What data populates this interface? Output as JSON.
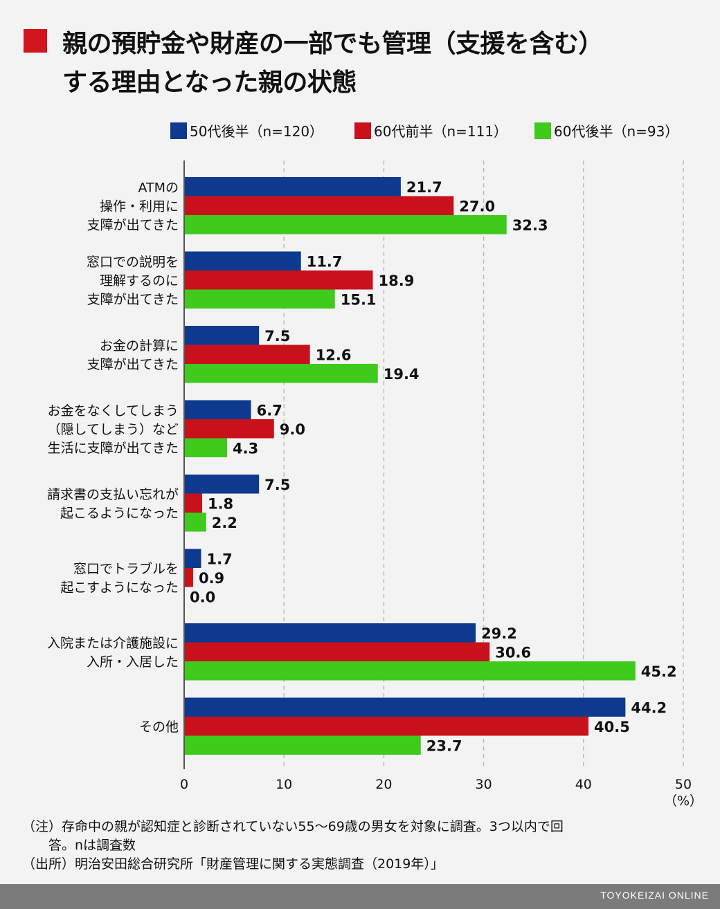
{
  "title": {
    "line1": "親の預貯金や財産の一部でも管理（支援を含む）",
    "line2": "する理由となった親の状態"
  },
  "colors": {
    "marker": "#d2141c",
    "series1": "#0d3a8f",
    "series2": "#c8111a",
    "series3": "#3ecb1b",
    "grid": "#bbbbbb",
    "axis": "#555555",
    "footer": "#7b7b7b"
  },
  "chart_data": {
    "type": "bar",
    "orientation": "horizontal",
    "categories": [
      [
        "ATMの",
        "操作・利用に",
        "支障が出てきた"
      ],
      [
        "窓口での説明を",
        "理解するのに",
        "支障が出てきた"
      ],
      [
        "お金の計算に",
        "支障が出てきた"
      ],
      [
        "お金をなくしてしまう",
        "（隠してしまう）など",
        "生活に支障が出てきた"
      ],
      [
        "請求書の支払い忘れが",
        "起こるようになった"
      ],
      [
        "窓口でトラブルを",
        "起こすようになった"
      ],
      [
        "入院または介護施設に",
        "入所・入居した"
      ],
      [
        "その他"
      ]
    ],
    "series": [
      {
        "name": "50代後半（n=120）",
        "values": [
          21.7,
          11.7,
          7.5,
          6.7,
          7.5,
          1.7,
          29.2,
          44.2
        ]
      },
      {
        "name": "60代前半（n=111）",
        "values": [
          27.0,
          18.9,
          12.6,
          9.0,
          1.8,
          0.9,
          30.6,
          40.5
        ]
      },
      {
        "name": "60代後半（n=93）",
        "values": [
          32.3,
          15.1,
          19.4,
          4.3,
          2.2,
          0.0,
          45.2,
          23.7
        ]
      }
    ],
    "value_labels": [
      [
        "21.7",
        "11.7",
        "7.5",
        "6.7",
        "7.5",
        "1.7",
        "29.2",
        "44.2"
      ],
      [
        "27.0",
        "18.9",
        "12.6",
        "9.0",
        "1.8",
        "0.9",
        "30.6",
        "40.5"
      ],
      [
        "32.3",
        "15.1",
        "19.4",
        "4.3",
        "2.2",
        "0.0",
        "45.2",
        "23.7"
      ]
    ],
    "xlim": [
      0,
      50
    ],
    "xticks": [
      "0",
      "10",
      "20",
      "30",
      "40",
      "50"
    ],
    "xunit": "（%）",
    "grid": "vertical dashed",
    "legend_position": "top"
  },
  "notes": {
    "line1": "（注）存命中の親が認知症と診断されていない55～69歳の男女を対象に調査。3つ以内で回",
    "line2": "　　答。nは調査数",
    "line3": "（出所）明治安田総合研究所「財産管理に関する実態調査（2019年）」"
  },
  "footer": "TOYOKEIZAI ONLINE"
}
